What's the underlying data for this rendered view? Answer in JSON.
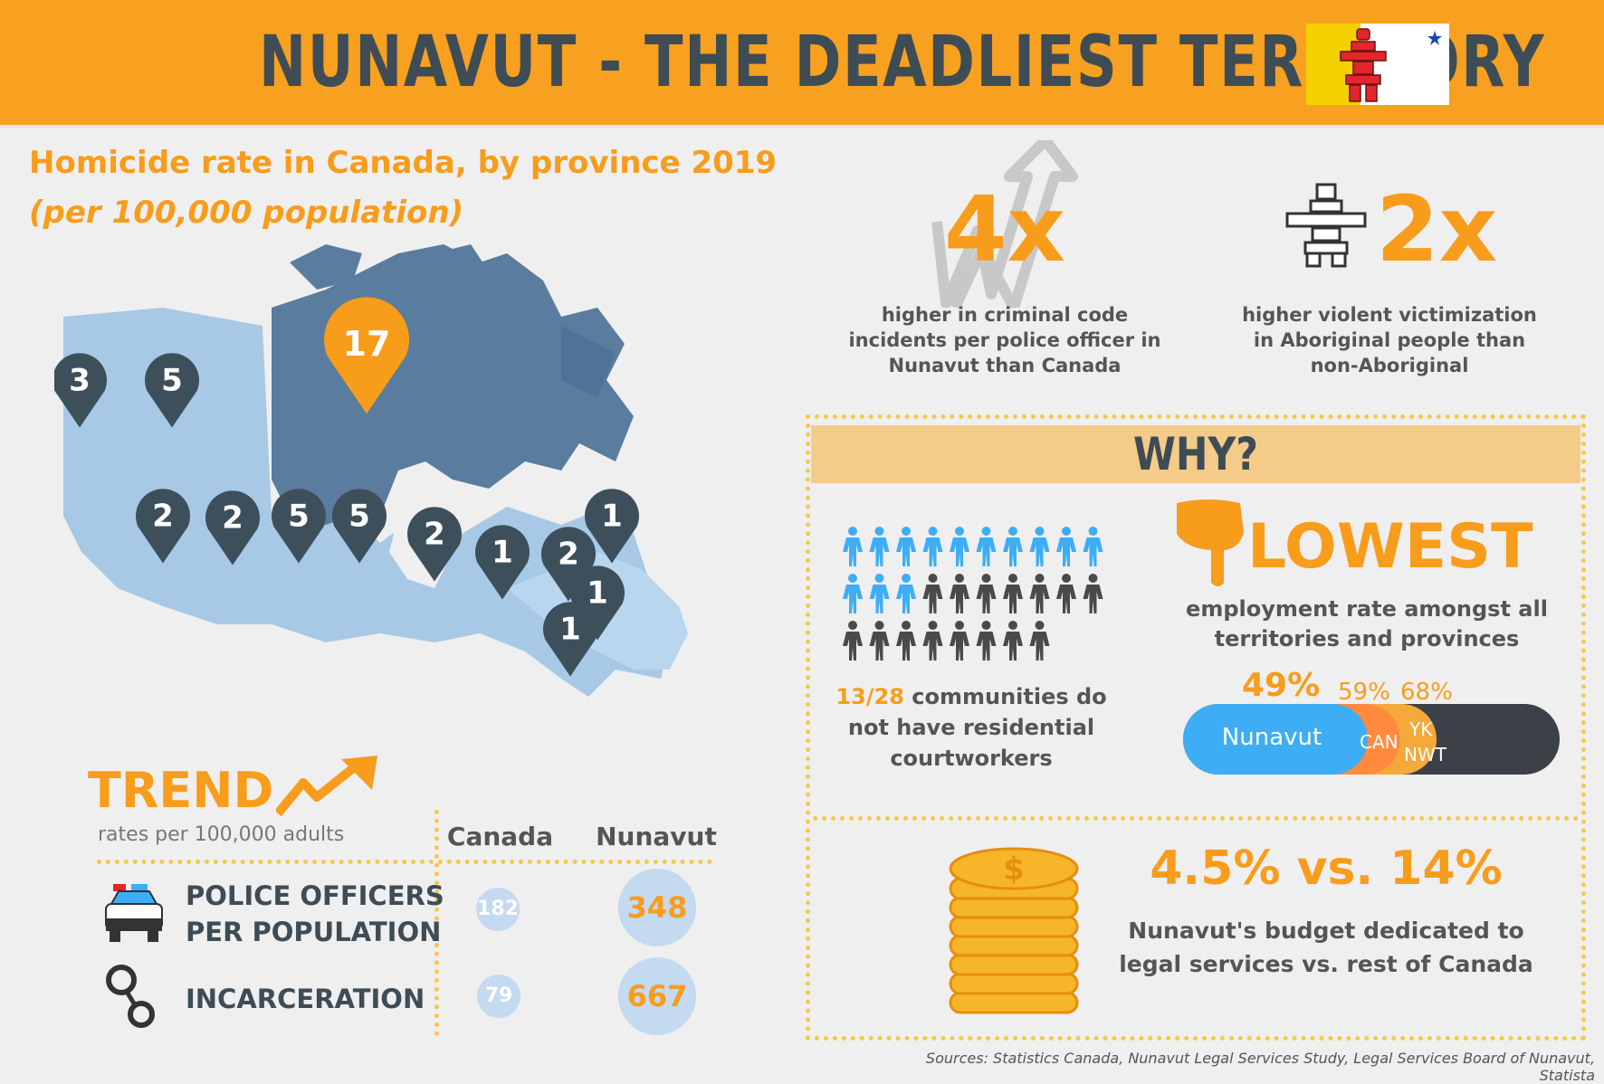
{
  "header": {
    "title": "NUNAVUT - THE DEADLIEST TERRITORY",
    "flag_colors": [
      "#f5d000",
      "#ffffff",
      "#e2262b",
      "#1b4aa6"
    ]
  },
  "map": {
    "title": "Homicide rate in Canada, by province 2019",
    "subtitle": "(per 100,000 population)",
    "pins": [
      "3",
      "5",
      "17",
      "2",
      "2",
      "5",
      "5",
      "2",
      "1",
      "2",
      "1",
      "1",
      "1"
    ],
    "colors": {
      "pin_dark": "#3e4f5c",
      "pin_highlight": "#f89c1c",
      "land_light": "#a7c9e5",
      "land_dark": "#5a7c9e"
    }
  },
  "stats": {
    "s1": {
      "value": "4x",
      "desc": "higher in criminal code incidents per police officer  in Nunavut than Canada"
    },
    "s2": {
      "value": "2x",
      "desc": "higher violent victimization in Aboriginal people than non-Aboriginal"
    }
  },
  "why": {
    "title": "WHY?",
    "communities": {
      "highlight": "13/28",
      "rest": " communities do not have residential courtworkers",
      "blue_count": 13,
      "gray_count": 15,
      "blue": "#3daef5",
      "gray": "#4a4a4a"
    },
    "lowest": {
      "title": "LOWEST",
      "desc": "employment rate amongst all territories and provinces",
      "pct_nunavut": "49%",
      "pct_can": "59%",
      "pct_yk": "68%",
      "bar_nunavut": "Nunavut",
      "bar_can": "CAN",
      "bar_yk": "YK",
      "bar_nwt": "NWT",
      "employment_rates": {
        "Nunavut": 49,
        "CAN": 59,
        "YK": 68
      }
    },
    "budget": {
      "value": "4.5% vs. 14%",
      "desc": "Nunavut's budget dedicated to legal services vs. rest of Canada",
      "coin_symbol": "$"
    }
  },
  "trend": {
    "title": "TREND",
    "sub": "rates per 100,000 adults",
    "col_canada": "Canada",
    "col_nunavut": "Nunavut",
    "rows": [
      {
        "label1": "POLICE OFFICERS",
        "label2": "PER POPULATION",
        "canada": "182",
        "nunavut": "348"
      },
      {
        "label1": "INCARCERATION",
        "label2": "",
        "canada": "79",
        "nunavut": "667"
      }
    ]
  },
  "footer": "Sources: Statistics Canada, Nunavut Legal Services Study, Legal Services Board of Nunavut, Statista"
}
